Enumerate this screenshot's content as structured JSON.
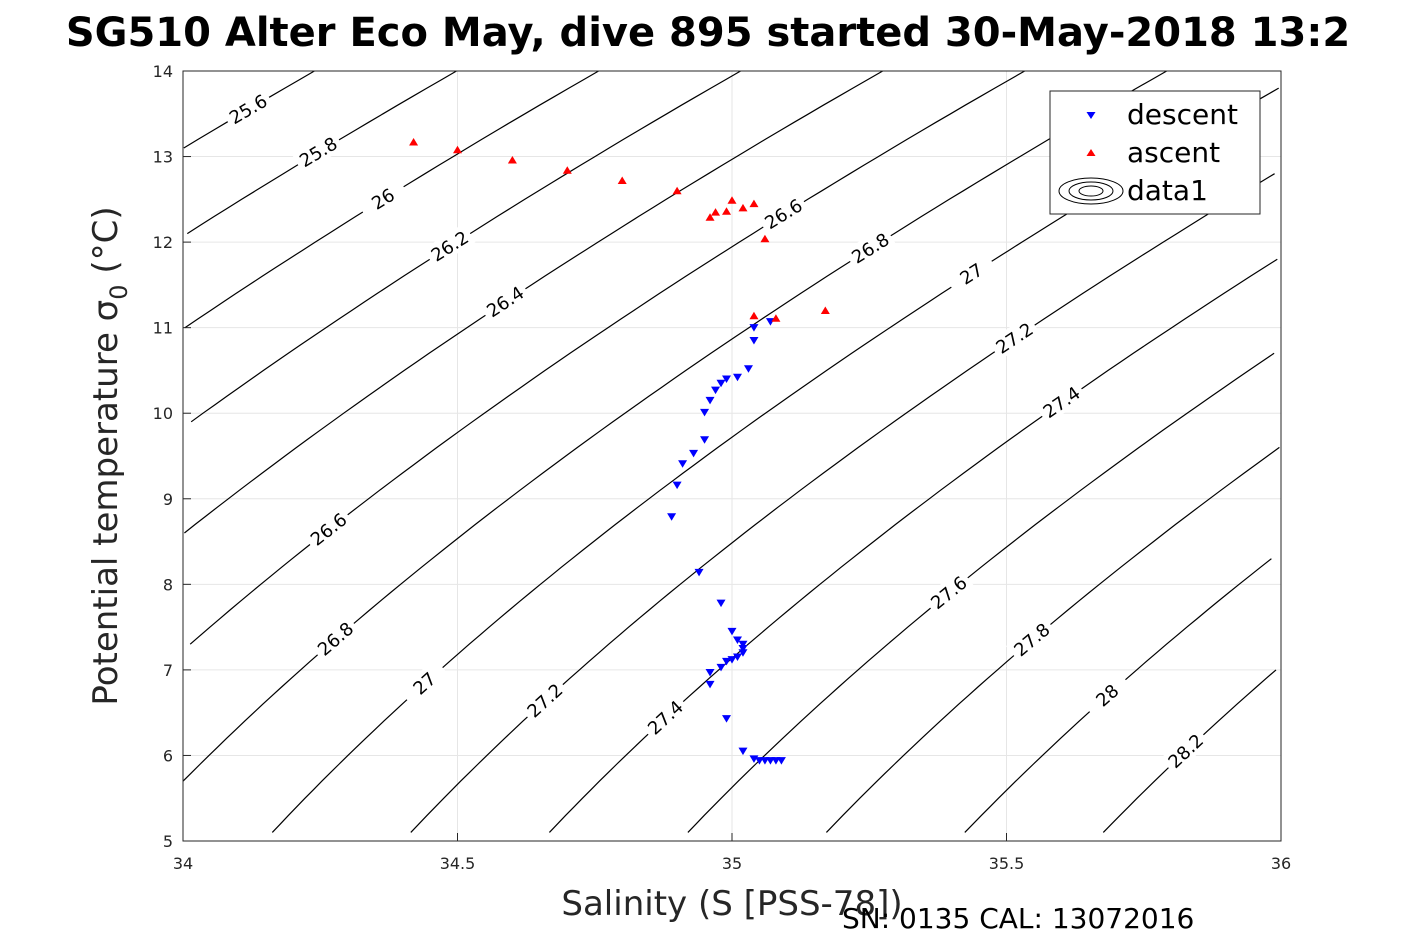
{
  "chart_data": {
    "type": "scatter",
    "title": "SG510 Alter Eco May, dive 895 started 30-May-2018 13:2",
    "xlabel": "Salinity (S [PSS-78])",
    "ylabel_main": "Potential temperature ",
    "ylabel_sigma": "σ",
    "ylabel_sub": "0",
    "ylabel_unit": " (°C)",
    "xlim": [
      34,
      36
    ],
    "ylim": [
      5,
      14
    ],
    "xticks": [
      "34",
      "34.5",
      "35",
      "35.5",
      "36"
    ],
    "yticks": [
      "5",
      "6",
      "7",
      "8",
      "9",
      "10",
      "11",
      "12",
      "13",
      "14"
    ],
    "grid": true,
    "legend_position": "top-right",
    "legend": [
      "descent",
      "ascent",
      "data1"
    ],
    "colors": {
      "descent": "#0000ff",
      "ascent": "#ff0000",
      "contour": "#000000",
      "grid": "#e6e6e6"
    },
    "series": [
      {
        "name": "descent",
        "marker": "triangle-down",
        "points": [
          [
            35.07,
            11.07
          ],
          [
            35.04,
            11.0
          ],
          [
            35.04,
            10.85
          ],
          [
            35.03,
            10.52
          ],
          [
            35.01,
            10.42
          ],
          [
            34.99,
            10.4
          ],
          [
            34.98,
            10.35
          ],
          [
            34.97,
            10.27
          ],
          [
            34.96,
            10.15
          ],
          [
            34.95,
            10.01
          ],
          [
            34.95,
            9.69
          ],
          [
            34.93,
            9.53
          ],
          [
            34.91,
            9.41
          ],
          [
            34.9,
            9.16
          ],
          [
            34.89,
            8.79
          ],
          [
            34.94,
            8.14
          ],
          [
            34.98,
            7.78
          ],
          [
            35.0,
            7.45
          ],
          [
            35.01,
            7.35
          ],
          [
            35.02,
            7.3
          ],
          [
            35.02,
            7.25
          ],
          [
            35.02,
            7.2
          ],
          [
            35.01,
            7.15
          ],
          [
            35.0,
            7.12
          ],
          [
            34.99,
            7.1
          ],
          [
            34.98,
            7.03
          ],
          [
            34.96,
            6.97
          ],
          [
            34.96,
            6.83
          ],
          [
            34.99,
            6.43
          ],
          [
            35.02,
            6.05
          ],
          [
            35.04,
            5.96
          ],
          [
            35.05,
            5.94
          ],
          [
            35.06,
            5.94
          ],
          [
            35.07,
            5.94
          ],
          [
            35.08,
            5.94
          ],
          [
            35.09,
            5.94
          ]
        ]
      },
      {
        "name": "ascent",
        "marker": "triangle-up",
        "points": [
          [
            34.42,
            13.17
          ],
          [
            34.5,
            13.08
          ],
          [
            34.6,
            12.96
          ],
          [
            34.7,
            12.84
          ],
          [
            34.8,
            12.72
          ],
          [
            34.9,
            12.6
          ],
          [
            35.0,
            12.49
          ],
          [
            35.04,
            12.45
          ],
          [
            35.02,
            12.4
          ],
          [
            34.99,
            12.36
          ],
          [
            34.97,
            12.35
          ],
          [
            34.96,
            12.29
          ],
          [
            35.06,
            12.04
          ],
          [
            35.04,
            11.14
          ],
          [
            35.08,
            11.11
          ],
          [
            35.17,
            11.2
          ]
        ]
      }
    ],
    "contours": {
      "series_name": "data1",
      "levels": [
        "25.6",
        "25.8",
        "26",
        "26.2",
        "26.4",
        "26.6",
        "26.8",
        "27",
        "27.2",
        "27.4",
        "27.6",
        "27.8",
        "28",
        "28.2"
      ]
    }
  },
  "footer": {
    "text": "SN: 0135  CAL: 13072016"
  }
}
